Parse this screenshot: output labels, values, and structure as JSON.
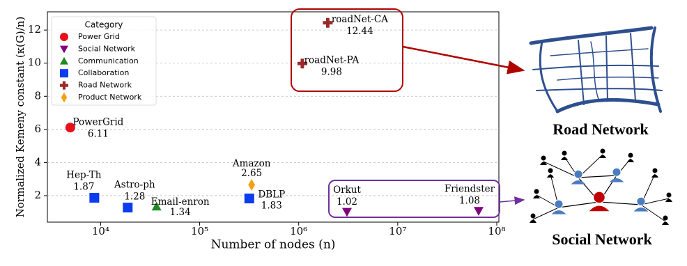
{
  "chart_data": {
    "type": "scatter",
    "x_label": "Number of nodes (n)",
    "y_label": "Normalized Kemeny constant (κ(G)/n)",
    "log_x": true,
    "xlim": [
      2900,
      105000000
    ],
    "xticks": [
      {
        "value": 10000,
        "label": "10⁴"
      },
      {
        "value": 100000,
        "label": "10⁵"
      },
      {
        "value": 1000000,
        "label": "10⁶"
      },
      {
        "value": 10000000,
        "label": "10⁷"
      },
      {
        "value": 100000000,
        "label": "10⁸"
      }
    ],
    "ylim": [
      0.4,
      13.1
    ],
    "yticks": [
      2,
      4,
      6,
      8,
      10,
      12
    ],
    "grid": true,
    "legend_title": "Category",
    "legend": "upper left",
    "series": [
      {
        "name": "Power Grid",
        "color": "#e8101a",
        "marker": "circle",
        "x": [
          4941
        ],
        "y": [
          6.11
        ],
        "labels": [
          "PowerGrid"
        ]
      },
      {
        "name": "Social Network",
        "color": "#800080",
        "marker": "triangle-down",
        "x": [
          3072441,
          65608366
        ],
        "y": [
          1.02,
          1.08
        ],
        "labels": [
          "Orkut",
          "Friendster"
        ]
      },
      {
        "name": "Communication",
        "color": "#218a21",
        "marker": "triangle-up",
        "x": [
          36692
        ],
        "y": [
          1.34
        ],
        "labels": [
          "Email-enron"
        ]
      },
      {
        "name": "Collaboration",
        "color": "#0a3cf0",
        "marker": "square",
        "x": [
          8638,
          18772,
          317080
        ],
        "y": [
          1.87,
          1.28,
          1.83
        ],
        "labels": [
          "Hep-Th",
          "Astro-ph",
          "DBLP"
        ]
      },
      {
        "name": "Road Network",
        "color": "#9a2a2a",
        "marker": "plus",
        "x": [
          1088092,
          1965206
        ],
        "y": [
          9.98,
          12.44
        ],
        "labels": [
          "roadNet-PA",
          "roadNet-CA"
        ]
      },
      {
        "name": "Product Network",
        "color": "#f5a010",
        "marker": "diamond",
        "x": [
          334863
        ],
        "y": [
          2.65
        ],
        "labels": [
          "Amazon"
        ]
      }
    ]
  },
  "illustrations": {
    "road": "Road Network",
    "social": "Social Network"
  }
}
